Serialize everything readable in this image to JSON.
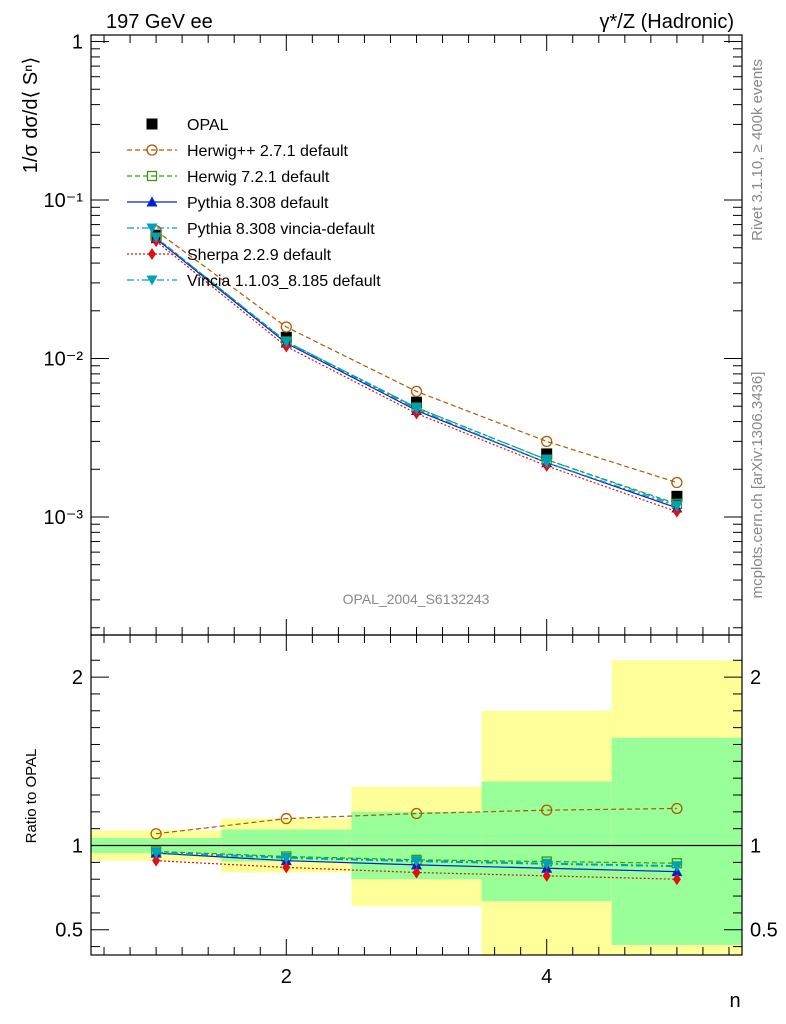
{
  "header": {
    "left": "197 GeV ee",
    "right": "γ*/Z (Hadronic)"
  },
  "side_labels": {
    "rivet": "Rivet 3.1.10, ≥ 400k events",
    "mcplots": "mcplots.cern.ch [arXiv:1306.3436]"
  },
  "watermark": "OPAL_2004_S6132243",
  "chart_data": [
    {
      "type": "line",
      "panel": "main",
      "ylabel": "1/σ dσ/d⟨ Sⁿ⟩",
      "yscale": "log",
      "ylim": [
        0.00018,
        1.1
      ],
      "xlim": [
        0.5,
        5.5
      ],
      "y_ticks": [
        {
          "value": 1,
          "label": "1"
        },
        {
          "value": 0.1,
          "label": "10⁻¹"
        },
        {
          "value": 0.01,
          "label": "10⁻²"
        },
        {
          "value": 0.001,
          "label": "10⁻³"
        }
      ],
      "x": [
        1,
        2,
        3,
        4,
        5
      ],
      "series": [
        {
          "name": "OPAL",
          "color": "#000000",
          "style": "data",
          "marker": "square",
          "values": [
            0.06,
            0.0136,
            0.0053,
            0.0025,
            0.00135
          ]
        },
        {
          "name": "Herwig++ 2.7.1 default",
          "color": "#b05a00",
          "style": "dashed",
          "marker": "circle-open",
          "values": [
            0.064,
            0.0158,
            0.0062,
            0.003,
            0.00165
          ]
        },
        {
          "name": "Herwig 7.2.1 default",
          "color": "#3a9a0a",
          "style": "dashed",
          "marker": "square-open",
          "values": [
            0.058,
            0.0128,
            0.0049,
            0.0023,
            0.00121
          ]
        },
        {
          "name": "Pythia 8.308 default",
          "color": "#0020d0",
          "style": "solid",
          "marker": "triangle-up",
          "values": [
            0.057,
            0.0125,
            0.0047,
            0.0022,
            0.00114
          ]
        },
        {
          "name": "Pythia 8.308 vincia-default",
          "color": "#00a0b8",
          "style": "dashdot",
          "marker": "triangle-down",
          "values": [
            0.058,
            0.0128,
            0.0049,
            0.0023,
            0.00119
          ]
        },
        {
          "name": "Sherpa 2.2.9 default",
          "color": "#e01010",
          "style": "dotted",
          "marker": "diamond",
          "values": [
            0.055,
            0.0119,
            0.0045,
            0.0021,
            0.00108
          ]
        },
        {
          "name": "Vincia 1.1.03_8.185 default",
          "color": "#00a0b8",
          "style": "dashdot",
          "marker": "triangle-down",
          "values": [
            0.058,
            0.0127,
            0.0048,
            0.0022,
            0.00117
          ]
        }
      ]
    },
    {
      "type": "line",
      "panel": "ratio",
      "ylabel": "Ratio to OPAL",
      "xlabel": "n",
      "ylim": [
        0.35,
        2.25
      ],
      "xlim": [
        0.5,
        5.5
      ],
      "x_ticks": [
        {
          "value": 2,
          "label": "2"
        },
        {
          "value": 4,
          "label": "4"
        }
      ],
      "y_ticks": [
        {
          "value": 0.5,
          "label": "0.5"
        },
        {
          "value": 1,
          "label": "1"
        },
        {
          "value": 2,
          "label": "2"
        }
      ],
      "bands": [
        {
          "x": 1,
          "green": [
            0.955,
            1.045
          ],
          "yellow": [
            0.91,
            1.09
          ]
        },
        {
          "x": 2,
          "green": [
            0.905,
            1.095
          ],
          "yellow": [
            0.84,
            1.16
          ]
        },
        {
          "x": 3,
          "green": [
            0.8,
            1.2
          ],
          "yellow": [
            0.64,
            1.35
          ]
        },
        {
          "x": 4,
          "green": [
            0.67,
            1.38
          ],
          "yellow": [
            0.35,
            1.8
          ]
        },
        {
          "x": 5,
          "green": [
            0.41,
            1.64
          ],
          "yellow": [
            0.35,
            2.1
          ]
        }
      ],
      "x": [
        1,
        2,
        3,
        4,
        5
      ],
      "series": [
        {
          "name": "Herwig++ 2.7.1 default",
          "values": [
            1.07,
            1.16,
            1.19,
            1.21,
            1.22
          ]
        },
        {
          "name": "Herwig 7.2.1 default",
          "values": [
            0.965,
            0.935,
            0.915,
            0.905,
            0.895
          ]
        },
        {
          "name": "Pythia 8.308 default",
          "values": [
            0.955,
            0.91,
            0.885,
            0.865,
            0.845
          ]
        },
        {
          "name": "Pythia 8.308 vincia-default",
          "values": [
            0.96,
            0.93,
            0.91,
            0.895,
            0.88
          ]
        },
        {
          "name": "Sherpa 2.2.9 default",
          "values": [
            0.91,
            0.87,
            0.84,
            0.82,
            0.8
          ]
        },
        {
          "name": "Vincia 1.1.03_8.185 default",
          "values": [
            0.955,
            0.925,
            0.905,
            0.89,
            0.875
          ]
        }
      ]
    }
  ]
}
